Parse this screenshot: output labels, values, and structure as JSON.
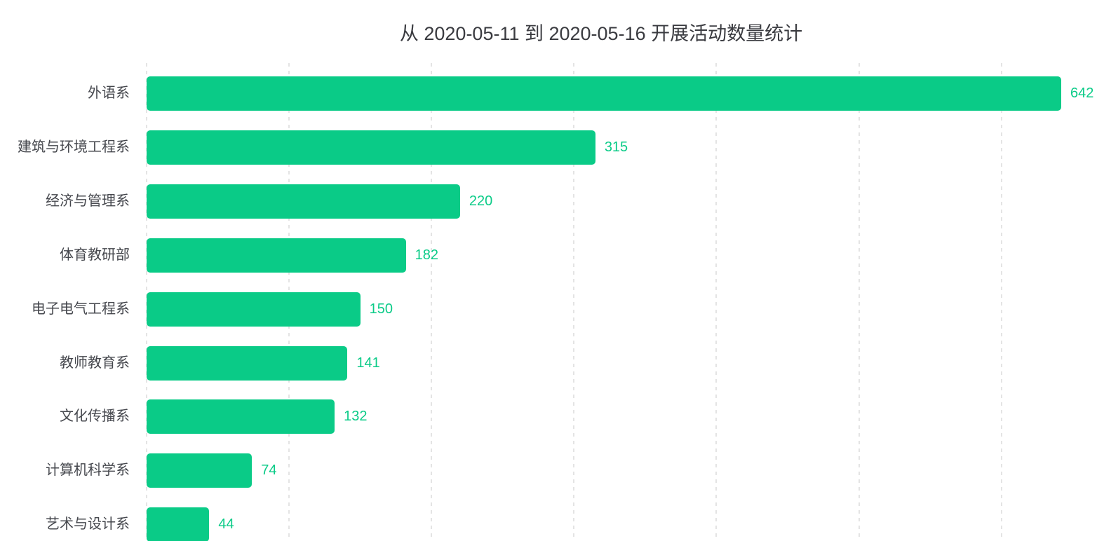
{
  "chart_data": {
    "type": "bar",
    "orientation": "horizontal",
    "title": "从 2020-05-11 到 2020-05-16 开展活动数量统计",
    "categories": [
      "外语系",
      "建筑与环境工程系",
      "经济与管理系",
      "体育教研部",
      "电子电气工程系",
      "教师教育系",
      "文化传播系",
      "计算机科学系",
      "艺术与设计系"
    ],
    "values": [
      642,
      315,
      220,
      182,
      150,
      141,
      132,
      74,
      44
    ],
    "value_labels_position": "outside-end",
    "xlabel": "",
    "ylabel": "",
    "xlim": [
      0,
      672
    ],
    "x_gridline_interval": 100,
    "x_max_gridline": 600,
    "grid_style": "vertical-dashed",
    "legend": "none",
    "colors": {
      "bar": "#0acb87",
      "value_label": "#0acb87",
      "category_label": "#45474d",
      "title": "#3a3b40",
      "gridline": "#e4e4e4",
      "background": "#ffffff"
    }
  }
}
